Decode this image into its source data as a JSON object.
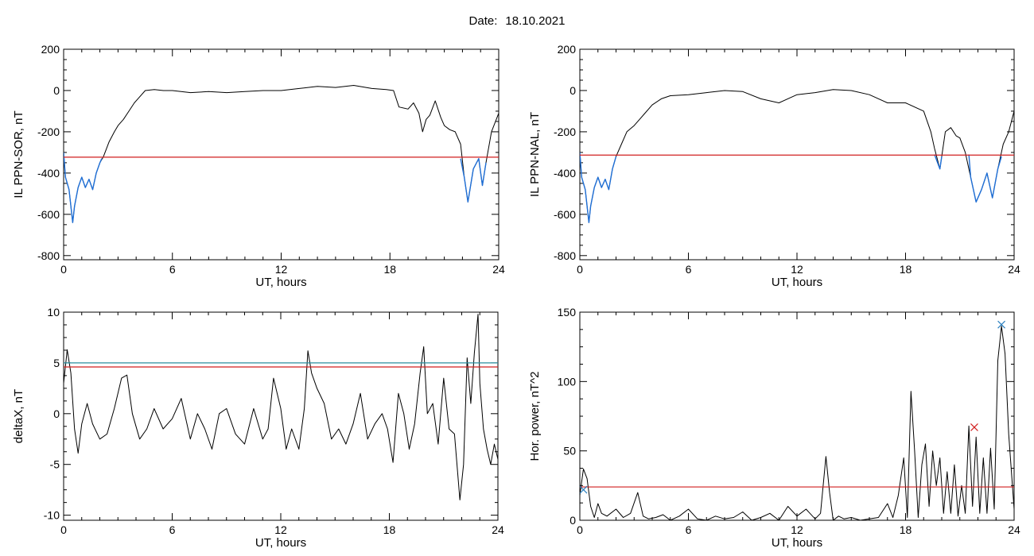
{
  "header": {
    "date_label": "Date:",
    "date_value": "18.10.2021"
  },
  "chart_data": [
    {
      "type": "line",
      "xlabel": "UT, hours",
      "ylabel": "IL PPN-SOR, nT",
      "xlim": [
        0,
        24
      ],
      "ylim": [
        -820,
        200
      ],
      "xticks": [
        0,
        6,
        12,
        18,
        24
      ],
      "yticks": [
        -800,
        -600,
        -400,
        -200,
        0,
        200
      ],
      "series": [
        {
          "color": "#000000",
          "x": [
            0,
            0.1,
            0.3,
            0.5,
            0.6,
            0.8,
            1.0,
            1.2,
            1.4,
            1.6,
            1.8,
            2.0,
            2.2,
            2.5,
            2.8,
            3.0,
            3.3,
            3.6,
            3.9,
            4.2,
            4.5,
            5.0,
            5.5,
            6,
            7,
            8,
            9,
            10,
            11,
            12,
            13,
            14,
            15,
            16,
            17,
            17.8,
            18.2,
            18.5,
            19.0,
            19.3,
            19.6,
            19.8,
            20.0,
            20.2,
            20.5,
            20.8,
            21.0,
            21.3,
            21.6,
            21.9,
            22.1,
            22.3,
            22.6,
            22.9,
            23.1,
            23.3,
            23.6,
            24
          ],
          "y": [
            -300,
            -420,
            -480,
            -640,
            -560,
            -470,
            -420,
            -470,
            -430,
            -480,
            -400,
            -350,
            -320,
            -250,
            -200,
            -170,
            -140,
            -100,
            -60,
            -30,
            0,
            5,
            0,
            0,
            -10,
            -5,
            -10,
            -5,
            0,
            0,
            10,
            20,
            15,
            25,
            10,
            5,
            0,
            -80,
            -90,
            -60,
            -110,
            -200,
            -140,
            -120,
            -50,
            -130,
            -170,
            -190,
            -200,
            -260,
            -420,
            -540,
            -380,
            -330,
            -460,
            -350,
            -200,
            -110
          ]
        },
        {
          "color": "#1f6fd6",
          "x": [
            0,
            0.1,
            0.3,
            0.5,
            0.6,
            0.8,
            1.0,
            1.2,
            1.4,
            1.6,
            1.8,
            2.0,
            2.1
          ],
          "y": [
            -300,
            -420,
            -480,
            -640,
            -560,
            -470,
            -420,
            -470,
            -430,
            -480,
            -400,
            -350,
            -330
          ]
        },
        {
          "color": "#1f6fd6",
          "x": [
            21.9,
            22.1,
            22.3,
            22.6,
            22.9,
            23.1,
            23.3
          ],
          "y": [
            -330,
            -420,
            -540,
            -380,
            -330,
            -460,
            -350
          ]
        }
      ],
      "hlines": [
        {
          "y": -323,
          "color": "#d11f1f"
        }
      ]
    },
    {
      "type": "line",
      "xlabel": "UT, hours",
      "ylabel": "IL PPN-NAL, nT",
      "xlim": [
        0,
        24
      ],
      "ylim": [
        -820,
        200
      ],
      "xticks": [
        0,
        6,
        12,
        18,
        24
      ],
      "yticks": [
        -800,
        -600,
        -400,
        -200,
        0,
        200
      ],
      "series": [
        {
          "color": "#000000",
          "x": [
            0,
            0.1,
            0.3,
            0.5,
            0.6,
            0.8,
            1.0,
            1.2,
            1.4,
            1.6,
            1.8,
            2.0,
            2.3,
            2.6,
            3.0,
            3.3,
            3.6,
            4.0,
            4.5,
            5.0,
            6,
            7,
            8,
            9,
            10,
            11,
            12,
            13,
            14,
            15,
            16,
            17,
            18,
            19.0,
            19.4,
            19.6,
            19.9,
            20.2,
            20.5,
            20.8,
            21.0,
            21.3,
            21.6,
            21.9,
            22.2,
            22.5,
            22.8,
            23.1,
            23.4,
            23.7,
            24
          ],
          "y": [
            -300,
            -420,
            -480,
            -640,
            -560,
            -470,
            -420,
            -470,
            -430,
            -480,
            -380,
            -320,
            -260,
            -200,
            -170,
            -140,
            -110,
            -70,
            -40,
            -25,
            -20,
            -10,
            0,
            -5,
            -40,
            -60,
            -20,
            -10,
            5,
            0,
            -20,
            -60,
            -60,
            -100,
            -200,
            -280,
            -380,
            -200,
            -180,
            -220,
            -230,
            -300,
            -420,
            -540,
            -480,
            -400,
            -520,
            -380,
            -260,
            -200,
            -100
          ]
        },
        {
          "color": "#1f6fd6",
          "x": [
            0,
            0.1,
            0.3,
            0.5,
            0.6,
            0.8,
            1.0,
            1.2,
            1.4,
            1.6,
            1.8,
            2.0
          ],
          "y": [
            -300,
            -420,
            -480,
            -640,
            -560,
            -470,
            -420,
            -470,
            -430,
            -480,
            -380,
            -320
          ]
        },
        {
          "color": "#1f6fd6",
          "x": [
            19.6,
            19.9,
            20.0
          ],
          "y": [
            -310,
            -380,
            -320
          ]
        },
        {
          "color": "#1f6fd6",
          "x": [
            21.5,
            21.6,
            21.9,
            22.2,
            22.5,
            22.8,
            23.1,
            23.3
          ],
          "y": [
            -310,
            -420,
            -540,
            -480,
            -400,
            -520,
            -380,
            -320
          ]
        }
      ],
      "hlines": [
        {
          "y": -313,
          "color": "#d11f1f"
        }
      ]
    },
    {
      "type": "line",
      "xlabel": "UT, hours",
      "ylabel": "deltaX, nT",
      "xlim": [
        0,
        24
      ],
      "ylim": [
        -10.5,
        10
      ],
      "xticks": [
        0,
        6,
        12,
        18,
        24
      ],
      "yticks": [
        -10,
        -5,
        0,
        5,
        10
      ],
      "series": [
        {
          "color": "#000000",
          "x": [
            0,
            0.2,
            0.4,
            0.6,
            0.8,
            1.0,
            1.3,
            1.6,
            2.0,
            2.4,
            2.8,
            3.2,
            3.5,
            3.8,
            4.2,
            4.6,
            5.0,
            5.5,
            6.0,
            6.5,
            7.0,
            7.4,
            7.8,
            8.2,
            8.6,
            9.0,
            9.5,
            10.0,
            10.5,
            11.0,
            11.3,
            11.6,
            12.0,
            12.3,
            12.6,
            13.0,
            13.3,
            13.5,
            13.7,
            14.0,
            14.4,
            14.8,
            15.2,
            15.6,
            16.0,
            16.4,
            16.8,
            17.2,
            17.6,
            17.9,
            18.2,
            18.5,
            18.8,
            19.1,
            19.4,
            19.7,
            19.9,
            20.1,
            20.4,
            20.7,
            21.0,
            21.3,
            21.6,
            21.9,
            22.1,
            22.3,
            22.5,
            22.7,
            22.9,
            23.0,
            23.2,
            23.4,
            23.6,
            23.8,
            24
          ],
          "y": [
            3,
            6.3,
            4,
            -1.5,
            -3.9,
            -1,
            1,
            -1,
            -2.5,
            -2,
            0.5,
            3.5,
            3.8,
            0,
            -2.5,
            -1.5,
            0.5,
            -1.5,
            -0.5,
            1.5,
            -2.5,
            0,
            -1.5,
            -3.5,
            0,
            0.5,
            -2,
            -3,
            0.5,
            -2.5,
            -1.5,
            3.5,
            0.5,
            -3.5,
            -1.5,
            -3.5,
            0.5,
            6.2,
            4,
            2.5,
            1,
            -2.5,
            -1.5,
            -3,
            -1,
            2,
            -2.5,
            -1,
            0,
            -1.5,
            -4.8,
            2,
            0,
            -3.5,
            -1,
            4,
            6.6,
            0,
            1,
            -3,
            3.5,
            -1.5,
            -2,
            -8.5,
            -5,
            5.5,
            1,
            6,
            9.8,
            3,
            -1.5,
            -3.5,
            -5,
            -3,
            -4.5
          ]
        }
      ],
      "hlines": [
        {
          "y": 4.6,
          "color": "#d11f1f"
        },
        {
          "y": 5.0,
          "color": "#2a8f9f"
        }
      ]
    },
    {
      "type": "line",
      "xlabel": "UT, hours",
      "ylabel": "Hor. power, nT^2",
      "xlim": [
        0,
        24
      ],
      "ylim": [
        0,
        150
      ],
      "xticks": [
        0,
        6,
        12,
        18,
        24
      ],
      "yticks": [
        0,
        50,
        100,
        150
      ],
      "series": [
        {
          "color": "#000000",
          "x": [
            0,
            0.2,
            0.4,
            0.6,
            0.8,
            1.0,
            1.2,
            1.5,
            2.0,
            2.4,
            2.8,
            3.2,
            3.5,
            3.8,
            4.2,
            4.6,
            5.0,
            5.5,
            6.0,
            6.5,
            7.0,
            7.5,
            8.0,
            8.5,
            9.0,
            9.5,
            10.0,
            10.5,
            11.0,
            11.5,
            12.0,
            12.5,
            13.0,
            13.3,
            13.6,
            13.8,
            14.0,
            14.3,
            14.6,
            15.0,
            15.5,
            16.0,
            16.5,
            17.0,
            17.3,
            17.6,
            17.9,
            18.1,
            18.3,
            18.5,
            18.7,
            18.9,
            19.1,
            19.3,
            19.5,
            19.7,
            19.9,
            20.1,
            20.3,
            20.5,
            20.7,
            20.9,
            21.1,
            21.3,
            21.5,
            21.7,
            21.9,
            22.1,
            22.3,
            22.5,
            22.7,
            22.9,
            23.1,
            23.3,
            23.5,
            23.7,
            24
          ],
          "y": [
            18,
            37,
            30,
            10,
            2,
            12,
            5,
            3,
            8,
            2,
            5,
            20,
            3,
            1,
            2,
            4,
            0,
            3,
            8,
            1,
            0,
            3,
            1,
            2,
            6,
            0,
            2,
            5,
            0,
            10,
            3,
            8,
            1,
            5,
            46,
            20,
            0,
            3,
            1,
            2,
            0,
            1,
            2,
            12,
            2,
            18,
            45,
            2,
            93,
            50,
            2,
            40,
            55,
            10,
            50,
            25,
            45,
            5,
            35,
            5,
            40,
            3,
            25,
            5,
            68,
            10,
            60,
            5,
            45,
            5,
            52,
            8,
            115,
            140,
            120,
            62,
            8
          ]
        }
      ],
      "hlines": [
        {
          "y": 24,
          "color": "#d11f1f"
        }
      ],
      "markers": [
        {
          "x": 0.2,
          "y": 22,
          "color": "#2a7fbf"
        },
        {
          "x": 21.8,
          "y": 67,
          "color": "#d11f1f"
        },
        {
          "x": 23.3,
          "y": 141,
          "color": "#2a7fbf"
        }
      ]
    }
  ]
}
